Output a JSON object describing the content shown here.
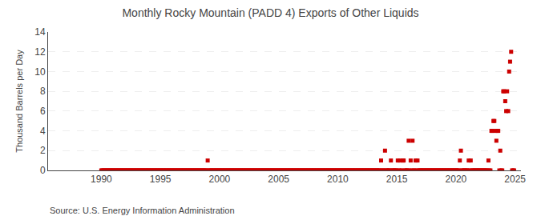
{
  "chart_data": {
    "type": "scatter",
    "title": "Monthly Rocky Mountain (PADD 4) Exports of Other Liquids",
    "ylabel": "Thousand Barrels per Day",
    "annotations": [
      "Source: U.S. Energy Information Administration"
    ],
    "color": "#cc0000",
    "marker": "square",
    "grid": "y",
    "xlim": [
      1985.5,
      2025.5
    ],
    "xticks": [
      1990,
      1995,
      2000,
      2005,
      2010,
      2015,
      2020,
      2025
    ],
    "ylim": [
      0,
      14
    ],
    "yticks": [
      0,
      2,
      4,
      6,
      8,
      10,
      12,
      14
    ],
    "x": [
      1990.0,
      1990.08,
      1990.17,
      1990.25,
      1990.33,
      1990.42,
      1990.5,
      1990.58,
      1990.67,
      1990.75,
      1990.83,
      1990.92,
      1991.0,
      1991.08,
      1991.17,
      1991.25,
      1991.33,
      1991.42,
      1991.5,
      1991.58,
      1991.67,
      1991.75,
      1991.83,
      1991.92,
      1992.0,
      1992.08,
      1992.17,
      1992.25,
      1992.33,
      1992.42,
      1992.5,
      1992.58,
      1992.67,
      1992.75,
      1992.83,
      1992.92,
      1993.0,
      1993.08,
      1993.17,
      1993.25,
      1993.33,
      1993.42,
      1993.5,
      1993.58,
      1993.67,
      1993.75,
      1993.83,
      1993.92,
      1994.0,
      1994.08,
      1994.17,
      1994.25,
      1994.33,
      1994.42,
      1994.5,
      1994.58,
      1994.67,
      1994.75,
      1994.83,
      1994.92,
      1995.0,
      1995.08,
      1995.17,
      1995.25,
      1995.33,
      1995.42,
      1995.5,
      1995.58,
      1995.67,
      1995.75,
      1995.83,
      1995.92,
      1996.0,
      1996.08,
      1996.17,
      1996.25,
      1996.33,
      1996.42,
      1996.5,
      1996.58,
      1996.67,
      1996.75,
      1996.83,
      1996.92,
      1997.0,
      1997.08,
      1997.17,
      1997.25,
      1997.33,
      1997.42,
      1997.5,
      1997.58,
      1997.67,
      1997.75,
      1997.83,
      1997.92,
      1998.0,
      1998.08,
      1998.17,
      1998.25,
      1998.33,
      1998.42,
      1998.5,
      1998.58,
      1998.67,
      1998.75,
      1998.83,
      1998.92,
      1999.0,
      1999.08,
      1999.17,
      1999.25,
      1999.33,
      1999.42,
      1999.5,
      1999.58,
      1999.67,
      1999.75,
      1999.83,
      1999.92,
      2000.0,
      2000.08,
      2000.17,
      2000.25,
      2000.33,
      2000.42,
      2000.5,
      2000.58,
      2000.67,
      2000.75,
      2000.83,
      2000.92,
      2001.0,
      2001.08,
      2001.17,
      2001.25,
      2001.33,
      2001.42,
      2001.5,
      2001.58,
      2001.67,
      2001.75,
      2001.83,
      2001.92,
      2002.0,
      2002.08,
      2002.17,
      2002.25,
      2002.33,
      2002.42,
      2002.5,
      2002.58,
      2002.67,
      2002.75,
      2002.83,
      2002.92,
      2003.0,
      2003.08,
      2003.17,
      2003.25,
      2003.33,
      2003.42,
      2003.5,
      2003.58,
      2003.67,
      2003.75,
      2003.83,
      2003.92,
      2004.0,
      2004.08,
      2004.17,
      2004.25,
      2004.33,
      2004.42,
      2004.5,
      2004.58,
      2004.67,
      2004.75,
      2004.83,
      2004.92,
      2005.0,
      2005.08,
      2005.17,
      2005.25,
      2005.33,
      2005.42,
      2005.5,
      2005.58,
      2005.67,
      2005.75,
      2005.83,
      2005.92,
      2006.0,
      2006.08,
      2006.17,
      2006.25,
      2006.33,
      2006.42,
      2006.5,
      2006.58,
      2006.67,
      2006.75,
      2006.83,
      2006.92,
      2007.0,
      2007.08,
      2007.17,
      2007.25,
      2007.33,
      2007.42,
      2007.5,
      2007.58,
      2007.67,
      2007.75,
      2007.83,
      2007.92,
      2008.0,
      2008.08,
      2008.17,
      2008.25,
      2008.33,
      2008.42,
      2008.5,
      2008.58,
      2008.67,
      2008.75,
      2008.83,
      2008.92,
      2009.0,
      2009.08,
      2009.17,
      2009.25,
      2009.33,
      2009.42,
      2009.5,
      2009.58,
      2009.67,
      2009.75,
      2009.83,
      2009.92,
      2010.0,
      2010.08,
      2010.17,
      2010.25,
      2010.33,
      2010.42,
      2010.5,
      2010.58,
      2010.67,
      2010.75,
      2010.83,
      2010.92,
      2011.0,
      2011.08,
      2011.17,
      2011.25,
      2011.33,
      2011.42,
      2011.5,
      2011.58,
      2011.67,
      2011.75,
      2011.83,
      2011.92,
      2012.0,
      2012.08,
      2012.17,
      2012.25,
      2012.33,
      2012.42,
      2012.5,
      2012.58,
      2012.67,
      2012.75,
      2012.83,
      2012.92,
      2013.0,
      2013.08,
      2013.17,
      2013.25,
      2013.33,
      2013.42,
      2013.5,
      2013.58,
      2013.67,
      2013.75,
      2013.83,
      2013.92,
      2014.0,
      2014.08,
      2014.17,
      2014.25,
      2014.33,
      2014.42,
      2014.5,
      2014.58,
      2014.67,
      2014.75,
      2014.83,
      2014.92,
      2015.0,
      2015.08,
      2015.17,
      2015.25,
      2015.33,
      2015.42,
      2015.5,
      2015.58,
      2015.67,
      2015.75,
      2015.83,
      2015.92,
      2016.0,
      2016.08,
      2016.17,
      2016.25,
      2016.33,
      2016.42,
      2016.5,
      2016.58,
      2016.67,
      2016.75,
      2016.83,
      2016.92,
      2017.0,
      2017.08,
      2017.17,
      2017.25,
      2017.33,
      2017.42,
      2017.5,
      2017.58,
      2017.67,
      2017.75,
      2017.83,
      2017.92,
      2018.0,
      2018.08,
      2018.17,
      2018.25,
      2018.33,
      2018.42,
      2018.5,
      2018.58,
      2018.67,
      2018.75,
      2018.83,
      2018.92,
      2019.0,
      2019.08,
      2019.17,
      2019.25,
      2019.33,
      2019.42,
      2019.5,
      2019.58,
      2019.67,
      2019.75,
      2019.83,
      2019.92,
      2020.0,
      2020.08,
      2020.17,
      2020.25,
      2020.33,
      2020.42,
      2020.5,
      2020.58,
      2020.67,
      2020.75,
      2020.83,
      2020.92,
      2021.0,
      2021.08,
      2021.17,
      2021.25,
      2021.33,
      2021.42,
      2021.5,
      2021.58,
      2021.67,
      2021.75,
      2021.83,
      2021.92,
      2022.0,
      2022.08,
      2022.17,
      2022.25,
      2022.33,
      2022.42,
      2022.5,
      2022.58,
      2022.67,
      2022.75,
      2022.83,
      2022.92,
      2023.0,
      2023.08,
      2023.17,
      2023.25,
      2023.33,
      2023.42,
      2023.5,
      2023.58,
      2023.67,
      2023.75,
      2023.83,
      2023.92,
      2024.0,
      2024.08,
      2024.17,
      2024.25,
      2024.33,
      2024.42,
      2024.5,
      2024.58,
      2024.67,
      2024.75,
      2024.83,
      2024.92
    ],
    "values": [
      0,
      0,
      0,
      0,
      0,
      0,
      0,
      0,
      0,
      0,
      0,
      0,
      0,
      0,
      0,
      0,
      0,
      0,
      0,
      0,
      0,
      0,
      0,
      0,
      0,
      0,
      0,
      0,
      0,
      0,
      0,
      0,
      0,
      0,
      0,
      0,
      0,
      0,
      0,
      0,
      0,
      0,
      0,
      0,
      0,
      0,
      0,
      0,
      0,
      0,
      0,
      0,
      0,
      0,
      0,
      0,
      0,
      0,
      0,
      0,
      0,
      0,
      0,
      0,
      0,
      0,
      0,
      0,
      0,
      0,
      0,
      0,
      0,
      0,
      0,
      0,
      0,
      0,
      0,
      0,
      0,
      0,
      0,
      0,
      0,
      0,
      0,
      0,
      0,
      0,
      0,
      0,
      0,
      0,
      0,
      0,
      0,
      0,
      0,
      0,
      0,
      0,
      0,
      0,
      0,
      0,
      0,
      0,
      1,
      0,
      0,
      0,
      0,
      0,
      0,
      0,
      0,
      0,
      0,
      0,
      0,
      0,
      0,
      0,
      0,
      0,
      0,
      0,
      0,
      0,
      0,
      0,
      0,
      0,
      0,
      0,
      0,
      0,
      0,
      0,
      0,
      0,
      0,
      0,
      0,
      0,
      0,
      0,
      0,
      0,
      0,
      0,
      0,
      0,
      0,
      0,
      0,
      0,
      0,
      0,
      0,
      0,
      0,
      0,
      0,
      0,
      0,
      0,
      0,
      0,
      0,
      0,
      0,
      0,
      0,
      0,
      0,
      0,
      0,
      0,
      0,
      0,
      0,
      0,
      0,
      0,
      0,
      0,
      0,
      0,
      0,
      0,
      0,
      0,
      0,
      0,
      0,
      0,
      0,
      0,
      0,
      0,
      0,
      0,
      0,
      0,
      0,
      0,
      0,
      0,
      0,
      0,
      0,
      0,
      0,
      0,
      0,
      0,
      0,
      0,
      0,
      0,
      0,
      0,
      0,
      0,
      0,
      0,
      0,
      0,
      0,
      0,
      0,
      0,
      0,
      0,
      0,
      0,
      0,
      0,
      0,
      0,
      0,
      0,
      0,
      0,
      0,
      0,
      0,
      0,
      0,
      0,
      0,
      0,
      0,
      0,
      0,
      0,
      0,
      0,
      0,
      0,
      0,
      0,
      0,
      0,
      0,
      0,
      0,
      0,
      0,
      0,
      0,
      0,
      0,
      0,
      0,
      0,
      0,
      0,
      0,
      0,
      0,
      0,
      1,
      0,
      0,
      0,
      2,
      0,
      0,
      0,
      0,
      0,
      1,
      0,
      0,
      0,
      0,
      0,
      0,
      1,
      0,
      1,
      0,
      0,
      1,
      1,
      0,
      0,
      0,
      0,
      3,
      0,
      1,
      0,
      3,
      0,
      0,
      1,
      0,
      1,
      0,
      0,
      0,
      0,
      0,
      0,
      0,
      0,
      0,
      0,
      0,
      0,
      0,
      0,
      0,
      0,
      0,
      0,
      0,
      0,
      0,
      0,
      0,
      0,
      0,
      0,
      0,
      0,
      0,
      0,
      0,
      0,
      0,
      0,
      0,
      0,
      0,
      0,
      0,
      0,
      0,
      0,
      1,
      2,
      0,
      0,
      0,
      0,
      0,
      0,
      0,
      1,
      0,
      1,
      0,
      0,
      0,
      0,
      0,
      0,
      0,
      0,
      0,
      0,
      0,
      0,
      0,
      0,
      0,
      0,
      0,
      1,
      0,
      0,
      4,
      4,
      5,
      5,
      4,
      3,
      4,
      4,
      0,
      2,
      0,
      0,
      8,
      8,
      7,
      6,
      8,
      6,
      10,
      11,
      12,
      0,
      0,
      0
    ]
  }
}
